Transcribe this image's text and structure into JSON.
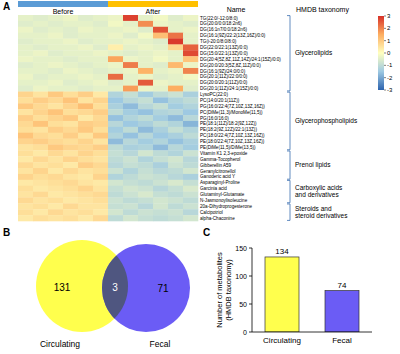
{
  "chart_data": [
    {
      "panel": "A",
      "type": "heatmap",
      "rows_header": "Name",
      "taxonomy_header": "HMDB taxonomy",
      "groups": [
        {
          "name": "Before",
          "color": "#5b9bd5",
          "size": 6
        },
        {
          "name": "After",
          "color": "#ffc000",
          "size": 6
        }
      ],
      "rows": [
        "TG(22:0/-12:0/8:0)",
        "DG(20:0/0:0/18:2n6)",
        "DG(16:1n7/0:0/18:2n6)",
        "DG(16:1(9Z)/22:2(13Z,16Z)/0:0)",
        "TG(i-20:0/8:0/8:0)",
        "DG(22:0/22:1(13Z)/0:0)",
        "DG(15:0/22:1(13Z)/0:0)",
        "DG(20:4(5Z,8Z,11Z,14Z)/24:1(15Z)/0:0)",
        "DG(20:0/20:3(5Z,8Z,11Z)/0:0)",
        "DG(16:1(9Z)/24:0/0:0)",
        "DG(20:1(11Z)/22:0/0:0)",
        "DG(20:0/20:1(11Z)/0:0)",
        "DG(20:1(11Z)/24:1(15Z)/0:0)",
        "LysoPC(22:0)",
        "PC(14:0/20:1(11Z))",
        "PG(16:0/22:4(7Z,10Z,13Z,16Z))",
        "PC(DiMe(11,3)/MonoMe(11,5))",
        "PG(16:0/16:0)",
        "PE(18:1(11Z)/18:2(9Z,12Z))",
        "PE(18:2(9Z,12Z)/22:1(13Z))",
        "PC(18:0/22:4(7Z,10Z,13Z,16Z))",
        "PE(18:0/22:4(7Z,10Z,13Z,16Z))",
        "PE(DiMe(11,5)/DiMe(13,5))",
        "Vitamin K1 2,3-epoxide",
        "Gamma-Tocopherol",
        "Gibberellin A59",
        "Geranylcitronellol",
        "Ganoderic acid Y",
        "Asparaginyl-Proline",
        "Garcinia acid",
        "Glutaminyl-Glutamate",
        "N-Jasmonoylisoleucine",
        "20a-Dihydroprogesterone",
        "Calcipotriol",
        "alpha-Chaconine"
      ],
      "row_groups": [
        {
          "lines": [
            "Glycerolipids"
          ],
          "count": 13
        },
        {
          "lines": [
            "Glycerophospholipids"
          ],
          "count": 10
        },
        {
          "lines": [
            "Prenol lipids"
          ],
          "count": 5
        },
        {
          "lines": [
            "Carboxylic acids",
            "and derivatives"
          ],
          "count": 4
        },
        {
          "lines": [
            "Steroids and",
            "steroid derivatives"
          ],
          "count": 3
        }
      ],
      "cells": [
        [
          -0.4,
          -0.5,
          -0.4,
          -0.3,
          -0.5,
          -0.4,
          -0.3,
          2.8,
          -0.4,
          -0.2,
          -0.5,
          -0.3
        ],
        [
          -0.5,
          -0.4,
          -0.5,
          -0.4,
          -0.4,
          -0.5,
          -0.2,
          -0.4,
          1.9,
          -0.3,
          -0.4,
          -0.5
        ],
        [
          -0.3,
          -0.5,
          -0.4,
          -0.5,
          -0.3,
          -0.4,
          -0.4,
          -0.3,
          -0.5,
          2.6,
          -0.4,
          -0.3
        ],
        [
          -0.4,
          -0.4,
          -0.3,
          -0.5,
          -0.4,
          -0.4,
          -0.3,
          -0.5,
          -0.2,
          1.2,
          2.2,
          -0.4
        ],
        [
          -0.5,
          -0.4,
          -0.4,
          -0.3,
          -0.5,
          -0.4,
          -0.4,
          -0.3,
          -0.4,
          -0.5,
          2.9,
          -0.4
        ],
        [
          -0.4,
          -0.5,
          -0.4,
          -0.4,
          -0.3,
          -0.5,
          0.3,
          -0.4,
          -0.3,
          -0.4,
          0.8,
          2.4
        ],
        [
          -0.4,
          -0.3,
          -0.5,
          -0.4,
          -0.4,
          -0.3,
          -0.4,
          -0.5,
          -0.4,
          -0.3,
          -0.4,
          2.7
        ],
        [
          -0.3,
          -0.4,
          -0.4,
          -0.5,
          -0.4,
          -0.4,
          1.6,
          -0.3,
          -0.4,
          -0.2,
          -0.4,
          1.1
        ],
        [
          -0.5,
          -0.4,
          -0.3,
          -0.4,
          -0.5,
          -0.4,
          -0.3,
          2.1,
          -0.4,
          -0.5,
          1.3,
          -0.3
        ],
        [
          -0.4,
          -0.4,
          -0.5,
          -0.3,
          -0.4,
          -0.5,
          -0.4,
          -0.3,
          1.4,
          -0.4,
          -0.3,
          2.0
        ],
        [
          -0.3,
          -0.5,
          -0.4,
          -0.4,
          -0.3,
          -0.4,
          2.3,
          -0.4,
          -0.3,
          -0.5,
          -0.4,
          -0.2
        ],
        [
          -0.4,
          -0.4,
          -0.3,
          -0.5,
          -0.4,
          -0.3,
          -0.5,
          -0.4,
          2.5,
          -0.3,
          -0.4,
          -0.4
        ],
        [
          -0.5,
          -0.3,
          -0.4,
          -0.4,
          -0.5,
          -0.4,
          -0.4,
          1.7,
          -0.3,
          -0.4,
          1.5,
          -0.5
        ],
        [
          0.8,
          0.5,
          1.0,
          0.6,
          0.9,
          0.4,
          -1.2,
          -0.9,
          -1.4,
          -1.0,
          -0.8,
          -1.3
        ],
        [
          0.6,
          0.9,
          0.7,
          1.1,
          0.5,
          0.8,
          -1.5,
          -1.1,
          -0.9,
          -1.6,
          -1.2,
          -1.0
        ],
        [
          1.0,
          0.7,
          0.5,
          0.8,
          1.2,
          0.6,
          -1.3,
          -1.7,
          -1.1,
          -0.9,
          -1.4,
          -1.2
        ],
        [
          0.5,
          0.8,
          1.1,
          0.6,
          0.7,
          0.9,
          -1.0,
          -1.4,
          -1.6,
          -1.2,
          -1.1,
          -1.5
        ],
        [
          0.9,
          0.6,
          0.8,
          1.0,
          0.4,
          0.7,
          -1.6,
          -1.2,
          -1.0,
          -1.4,
          -1.7,
          -1.1
        ],
        [
          0.7,
          1.1,
          0.6,
          0.5,
          0.9,
          0.8,
          -1.1,
          -1.5,
          -1.3,
          -1.0,
          -1.2,
          -1.8
        ],
        [
          0.6,
          0.5,
          0.9,
          0.7,
          1.0,
          0.6,
          -1.4,
          -1.0,
          -1.7,
          -1.3,
          -0.9,
          -1.2
        ],
        [
          1.1,
          0.7,
          0.6,
          0.9,
          0.5,
          1.0,
          -1.2,
          -1.6,
          -1.1,
          -1.5,
          -1.3,
          -1.0
        ],
        [
          0.8,
          0.9,
          0.7,
          0.6,
          0.8,
          0.5,
          -1.7,
          -1.1,
          -1.4,
          -1.2,
          -1.6,
          -1.3
        ],
        [
          0.5,
          0.6,
          1.0,
          0.8,
          0.7,
          0.9,
          -1.0,
          -1.3,
          -1.2,
          -1.7,
          -1.1,
          -1.4
        ],
        [
          0.6,
          0.4,
          0.7,
          0.5,
          0.8,
          0.6,
          -0.9,
          -1.1,
          -0.7,
          -1.0,
          -1.2,
          -0.8
        ],
        [
          0.4,
          0.7,
          0.5,
          0.8,
          0.6,
          0.5,
          -1.0,
          -0.8,
          -1.2,
          -0.9,
          -0.7,
          -1.1
        ],
        [
          0.7,
          0.5,
          0.6,
          0.4,
          0.9,
          0.7,
          -1.1,
          -0.9,
          -1.0,
          -1.3,
          -0.8,
          -1.0
        ],
        [
          0.5,
          0.8,
          0.4,
          0.7,
          0.5,
          0.6,
          -0.8,
          -1.2,
          -0.9,
          -1.1,
          -1.0,
          -0.7
        ],
        [
          0.8,
          0.6,
          0.7,
          0.5,
          0.4,
          0.8,
          -1.2,
          -1.0,
          -0.8,
          -0.9,
          -1.1,
          -1.3
        ],
        [
          0.4,
          0.5,
          0.6,
          0.7,
          0.5,
          0.4,
          -0.7,
          -0.9,
          -1.0,
          -0.8,
          -0.6,
          -0.9
        ],
        [
          0.6,
          0.4,
          0.5,
          0.6,
          0.8,
          0.5,
          -0.9,
          -0.7,
          -0.8,
          -1.1,
          -0.9,
          -0.6
        ],
        [
          0.5,
          0.7,
          0.4,
          0.5,
          0.6,
          0.7,
          -1.0,
          -0.8,
          -0.6,
          -0.9,
          -1.0,
          -0.8
        ],
        [
          0.7,
          0.5,
          0.6,
          0.4,
          0.5,
          0.6,
          -0.8,
          -1.0,
          -0.9,
          -0.7,
          -0.8,
          -1.0
        ],
        [
          0.5,
          0.6,
          0.4,
          0.7,
          0.5,
          0.5,
          -0.9,
          -0.8,
          -1.1,
          -0.7,
          -1.0,
          -0.8
        ],
        [
          0.6,
          0.4,
          0.7,
          0.5,
          0.6,
          0.4,
          -0.7,
          -1.0,
          -0.8,
          -0.9,
          -0.8,
          -1.1
        ],
        [
          0.4,
          0.6,
          0.5,
          0.6,
          0.4,
          0.7,
          -1.0,
          -0.7,
          -0.9,
          -1.0,
          -0.9,
          -0.7
        ]
      ],
      "colorbar": {
        "range": [
          -3,
          3
        ],
        "ticks": [
          3,
          2,
          1,
          0,
          -1,
          -2,
          -3
        ],
        "colors": [
          "#2c63ae",
          "#9ec9e2",
          "#ffffbf",
          "#fdae61",
          "#d73027"
        ]
      }
    },
    {
      "panel": "B",
      "type": "venn",
      "sets": [
        {
          "name": "Circulating",
          "color": "#ffff4d",
          "only": 131
        },
        {
          "name": "Fecal",
          "color": "#6b5cf5",
          "only": 71
        }
      ],
      "overlap": 3
    },
    {
      "panel": "C",
      "type": "bar",
      "categories": [
        "Circulating",
        "Fecal"
      ],
      "values": [
        134,
        74
      ],
      "colors": [
        "#ffff4d",
        "#6b5cf5"
      ],
      "ylabel": [
        "Number of metabolites",
        "(HMDB taxonomy)"
      ],
      "ylim": [
        0,
        150
      ],
      "yticks": [
        0,
        50,
        100,
        150
      ],
      "grid": false,
      "data_labels": true
    }
  ]
}
